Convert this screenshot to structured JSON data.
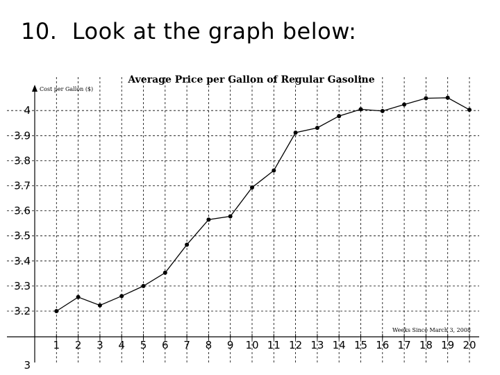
{
  "slide": {
    "title": "10.  Look at the graph below:"
  },
  "chart_data": {
    "type": "line",
    "title": "Average Price per Gallon of Regular Gasoline",
    "xlabel": "Weeks Since March 3, 2008",
    "ylabel": "Cost per Gallon ($)",
    "x": [
      1,
      2,
      3,
      4,
      5,
      6,
      7,
      8,
      9,
      10,
      11,
      12,
      13,
      14,
      15,
      16,
      17,
      18,
      19,
      20
    ],
    "values": [
      3.2,
      3.256,
      3.223,
      3.26,
      3.3,
      3.353,
      3.465,
      3.565,
      3.578,
      3.693,
      3.761,
      3.912,
      3.931,
      3.978,
      4.005,
      3.998,
      4.024,
      4.049,
      4.051,
      4.003
    ],
    "xlim": [
      0,
      21
    ],
    "ylim": [
      3.1,
      4.1
    ],
    "y_ticks": [
      "3.2",
      "3.3",
      "3.4",
      "3.5",
      "3.6",
      "3.7",
      "3.8",
      "3.9",
      "4"
    ],
    "x_ticks": [
      "1",
      "2",
      "3",
      "4",
      "5",
      "6",
      "7",
      "8",
      "9",
      "10",
      "11",
      "12",
      "13",
      "14",
      "15",
      "16",
      "17",
      "18",
      "19",
      "20"
    ],
    "partial_tick_label": "3",
    "grid": true,
    "grid_style": "dashed",
    "markers": true,
    "colors": {
      "line": "#000000",
      "grid": "#000000",
      "marker": "#000000"
    }
  }
}
